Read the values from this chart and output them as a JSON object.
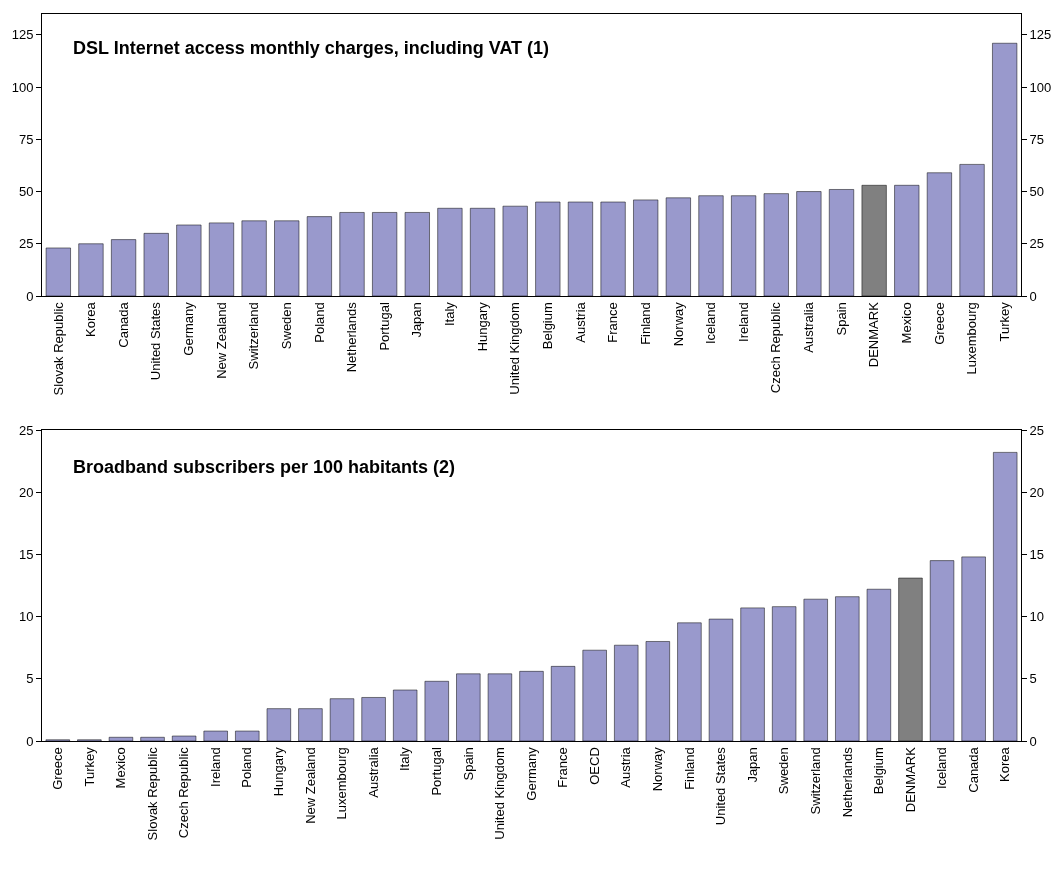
{
  "chart_data": [
    {
      "type": "bar",
      "title": "DSL Internet access monthly charges, including VAT (1)",
      "categories": [
        "Slovak Republic",
        "Korea",
        "Canada",
        "United States",
        "Germany",
        "New Zealand",
        "Switzerland",
        "Sweden",
        "Poland",
        "Netherlands",
        "Portugal",
        "Japan",
        "Italy",
        "Hungary",
        "United Kingdom",
        "Belgium",
        "Austria",
        "France",
        "Finland",
        "Norway",
        "Iceland",
        "Ireland",
        "Czech Republic",
        "Australia",
        "Spain",
        "DENMARK",
        "Mexico",
        "Greece",
        "Luxembourg",
        "Turkey"
      ],
      "values": [
        23,
        25,
        27,
        30,
        34,
        35,
        36,
        36,
        38,
        40,
        40,
        40,
        42,
        42,
        43,
        45,
        45,
        45,
        46,
        47,
        48,
        48,
        49,
        50,
        51,
        53,
        53,
        59,
        63,
        121
      ],
      "colors": [
        "#9999cc",
        "#9999cc",
        "#9999cc",
        "#9999cc",
        "#9999cc",
        "#9999cc",
        "#9999cc",
        "#9999cc",
        "#9999cc",
        "#9999cc",
        "#9999cc",
        "#9999cc",
        "#9999cc",
        "#9999cc",
        "#9999cc",
        "#9999cc",
        "#9999cc",
        "#9999cc",
        "#9999cc",
        "#9999cc",
        "#9999cc",
        "#9999cc",
        "#9999cc",
        "#9999cc",
        "#9999cc",
        "#808080",
        "#9999cc",
        "#9999cc",
        "#9999cc",
        "#9999cc"
      ],
      "ylim": [
        0,
        135
      ],
      "yticks": [
        0,
        25,
        50,
        75,
        100,
        125
      ],
      "y2lim": [
        0,
        135
      ],
      "y2ticks": [
        0,
        25,
        50,
        75,
        100,
        125
      ]
    },
    {
      "type": "bar",
      "title": "Broadband subscribers per 100 habitants (2)",
      "categories": [
        "Greece",
        "Turkey",
        "Mexico",
        "Slovak Republic",
        "Czech Republic",
        "Ireland",
        "Poland",
        "Hungary",
        "New Zealand",
        "Luxembourg",
        "Australia",
        "Italy",
        "Portugal",
        "Spain",
        "United Kingdom",
        "Germany",
        "France",
        "OECD",
        "Austria",
        "Norway",
        "Finland",
        "United States",
        "Japan",
        "Sweden",
        "Switzerland",
        "Netherlands",
        "Belgium",
        "DENMARK",
        "Iceland",
        "Canada",
        "Korea"
      ],
      "values": [
        0.1,
        0.1,
        0.3,
        0.3,
        0.4,
        0.8,
        0.8,
        2.6,
        2.6,
        3.4,
        3.5,
        4.1,
        4.8,
        5.4,
        5.4,
        5.6,
        6.0,
        7.3,
        7.7,
        8.0,
        9.5,
        9.8,
        10.7,
        10.8,
        11.4,
        11.6,
        12.2,
        13.1,
        14.5,
        14.8,
        23.2
      ],
      "colors": [
        "#9999cc",
        "#9999cc",
        "#9999cc",
        "#9999cc",
        "#9999cc",
        "#9999cc",
        "#9999cc",
        "#9999cc",
        "#9999cc",
        "#9999cc",
        "#9999cc",
        "#9999cc",
        "#9999cc",
        "#9999cc",
        "#9999cc",
        "#9999cc",
        "#9999cc",
        "#9999cc",
        "#9999cc",
        "#9999cc",
        "#9999cc",
        "#9999cc",
        "#9999cc",
        "#9999cc",
        "#9999cc",
        "#9999cc",
        "#9999cc",
        "#808080",
        "#9999cc",
        "#9999cc",
        "#9999cc"
      ],
      "ylim": [
        0,
        25
      ],
      "yticks": [
        0,
        5,
        10,
        15,
        20,
        25
      ],
      "y2lim": [
        0,
        25
      ],
      "y2ticks": [
        0,
        5,
        10,
        15,
        20,
        25
      ]
    }
  ]
}
